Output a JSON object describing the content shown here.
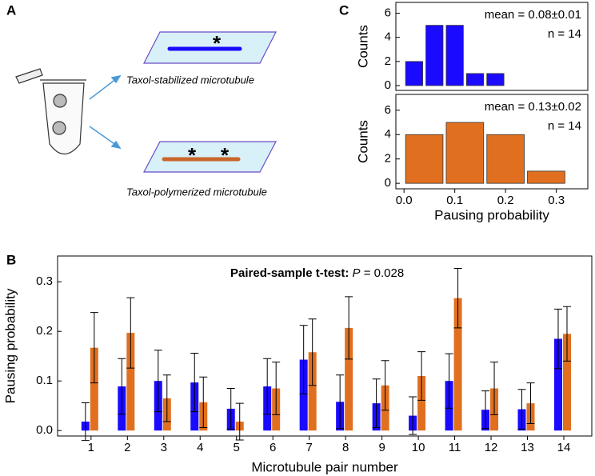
{
  "panels": {
    "a": "A",
    "b": "B",
    "c": "C"
  },
  "diagram": {
    "label_top": "Taxol-stabilized microtubule",
    "label_bottom": "Taxol-polymerized microtubule",
    "asterisk": "*"
  },
  "chart_data": [
    {
      "type": "histogram",
      "ylabel": "Counts",
      "bins": [
        0,
        0.04,
        0.08,
        0.12,
        0.16,
        0.2
      ],
      "counts": [
        2,
        5,
        5,
        1,
        1
      ],
      "color": "#1a0aff",
      "xlim": [
        -0.016,
        0.362
      ],
      "ylim": [
        -0.4,
        6.9
      ],
      "yticks": [
        0,
        2,
        4,
        6
      ],
      "annotations": [
        "mean = 0.08±0.01",
        "n = 14"
      ]
    },
    {
      "type": "histogram",
      "ylabel": "Counts",
      "xlabel": "Pausing probability",
      "bins": [
        0,
        0.08,
        0.16,
        0.24,
        0.32
      ],
      "counts": [
        4,
        5,
        4,
        1
      ],
      "color": "#e07020",
      "xlim": [
        -0.016,
        0.362
      ],
      "ylim": [
        -0.45,
        7.3
      ],
      "yticks": [
        0,
        2,
        4,
        6
      ],
      "xticks": [
        {
          "value": 0,
          "label": "0.0"
        },
        0.1,
        0.2,
        0.3
      ],
      "annotations": [
        "mean = 0.13±0.02",
        "n = 14"
      ]
    },
    {
      "type": "bar",
      "xlabel": "Microtubule pair number",
      "ylabel": "Pausing probability",
      "annotation": {
        "bold": "Paired-sample t-test:",
        "italic": "P",
        "rest": "= 0.028"
      },
      "x": [
        1,
        2,
        3,
        4,
        5,
        6,
        7,
        8,
        9,
        10,
        11,
        12,
        13,
        14
      ],
      "series": [
        {
          "color": "#1a0aff",
          "values": [
            0.018,
            0.089,
            0.1,
            0.097,
            0.044,
            0.089,
            0.143,
            0.058,
            0.055,
            0.03,
            0.1,
            0.042,
            0.043,
            0.185
          ],
          "errors": [
            0.038,
            0.056,
            0.062,
            0.059,
            0.041,
            0.056,
            0.069,
            0.054,
            0.049,
            0.038,
            0.055,
            0.038,
            0.04,
            0.06
          ]
        },
        {
          "color": "#e07020",
          "values": [
            0.167,
            0.197,
            0.065,
            0.057,
            0.018,
            0.085,
            0.158,
            0.207,
            0.091,
            0.11,
            0.267,
            0.085,
            0.055,
            0.195
          ],
          "errors": [
            0.071,
            0.071,
            0.047,
            0.051,
            0.037,
            0.053,
            0.067,
            0.063,
            0.05,
            0.049,
            0.06,
            0.053,
            0.041,
            0.055
          ]
        }
      ],
      "xlim": [
        0.08,
        14.77
      ],
      "ylim": [
        -0.011,
        0.352
      ],
      "xticks": [
        1,
        2,
        3,
        4,
        5,
        6,
        7,
        8,
        9,
        10,
        11,
        12,
        13,
        14
      ],
      "yticks": [
        {
          "value": 0,
          "label": "0.0"
        },
        0.1,
        0.2,
        0.3
      ]
    }
  ]
}
